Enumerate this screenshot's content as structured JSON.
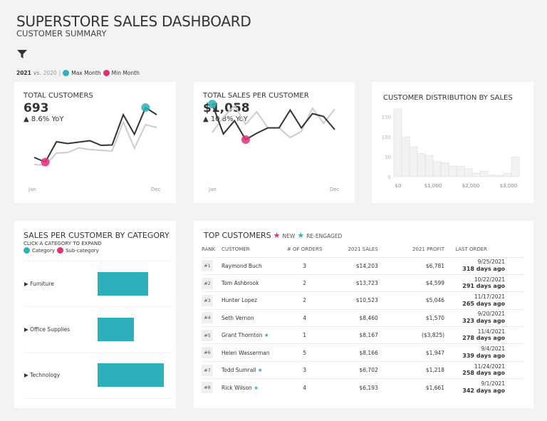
{
  "header": {
    "title": "SUPERSTORE SALES DASHBOARD",
    "subtitle": "CUSTOMER SUMMARY",
    "filter_icon": "funnel-icon",
    "legend": {
      "year": "2021",
      "vs": "vs.",
      "prev": "2020",
      "sep": "|",
      "max": "Max Month",
      "min": "Min Month"
    }
  },
  "colors": {
    "accent_max": "#2db0b9",
    "accent_min": "#e0307a",
    "line_current": "#333333",
    "line_prior": "#cccccc",
    "bar": "#2db0b9"
  },
  "kpis": [
    {
      "title": "TOTAL CUSTOMERS",
      "value": "693",
      "yoy": "▲ 8.6% YoY",
      "x_start": "Jan",
      "x_end": "Dec",
      "current": [
        38,
        25,
        82,
        77,
        81,
        85,
        72,
        73,
        158,
        103,
        178,
        158
      ],
      "prior": [
        18,
        16,
        50,
        52,
        65,
        60,
        58,
        56,
        138,
        64,
        130,
        122
      ],
      "max_index": 10,
      "min_index": 1
    },
    {
      "title": "TOTAL SALES PER CUSTOMER",
      "value": "$1,058",
      "yoy": "▲ 10.8% YoY",
      "x_start": "Jan",
      "x_end": "Dec",
      "current": [
        182,
        98,
        135,
        82,
        100,
        115,
        115,
        165,
        115,
        155,
        147,
        110
      ],
      "prior": [
        102,
        145,
        178,
        125,
        160,
        115,
        115,
        88,
        105,
        170,
        128,
        168
      ],
      "max_index": 0,
      "min_index": 3
    }
  ],
  "chart_data": {
    "type": "bar",
    "title": "CUSTOMER DISTRIBUTION BY SALES",
    "ylim": [
      0,
      170
    ],
    "yticks": [
      "0",
      "50",
      "100",
      "150"
    ],
    "xticks": [
      "$0",
      "$1,000",
      "$2,000",
      "$3,000"
    ],
    "values": [
      170,
      100,
      75,
      58,
      53,
      38,
      35,
      26,
      26,
      20,
      9,
      14,
      4,
      3,
      9,
      49
    ]
  },
  "category": {
    "title": "SALES PER CUSTOMER BY CATEGORY",
    "hint": "CLICK A CATEGORY TO EXPAND",
    "legend_category": "Category",
    "legend_sub": "Sub-category",
    "items": [
      {
        "label": "Furniture",
        "value": 0.76
      },
      {
        "label": "Office Supplies",
        "value": 0.55
      },
      {
        "label": "Technology",
        "value": 1.0
      }
    ]
  },
  "top": {
    "title": "TOP CUSTOMERS",
    "new": "NEW",
    "reengaged": "RE-ENGAGED",
    "columns": [
      "RANK",
      "CUSTOMER",
      "# OF ORDERS",
      "2021 SALES",
      "2021 PROFIT",
      "LAST ORDER"
    ],
    "rows": [
      {
        "rank": "#1",
        "name": "Raymond Buch",
        "star": "",
        "orders": "3",
        "sales": "$14,203",
        "profit": "$6,781",
        "date": "9/25/2021",
        "ago": "318 days ago"
      },
      {
        "rank": "#2",
        "name": "Tom Ashbrook",
        "star": "",
        "orders": "2",
        "sales": "$13,723",
        "profit": "$4,599",
        "date": "10/22/2021",
        "ago": "291 days ago"
      },
      {
        "rank": "#3",
        "name": "Hunter Lopez",
        "star": "",
        "orders": "2",
        "sales": "$10,523",
        "profit": "$5,046",
        "date": "11/17/2021",
        "ago": "265 days ago"
      },
      {
        "rank": "#4",
        "name": "Seth Vernon",
        "star": "",
        "orders": "4",
        "sales": "$8,460",
        "profit": "$1,570",
        "date": "9/20/2021",
        "ago": "323 days ago"
      },
      {
        "rank": "#5",
        "name": "Grant Thornton",
        "star": "★",
        "orders": "1",
        "sales": "$8,167",
        "profit": "($3,825)",
        "date": "11/4/2021",
        "ago": "278 days ago"
      },
      {
        "rank": "#6",
        "name": "Helen Wasserman",
        "star": "",
        "orders": "5",
        "sales": "$8,166",
        "profit": "$1,947",
        "date": "9/4/2021",
        "ago": "339 days ago"
      },
      {
        "rank": "#7",
        "name": "Todd Sumrall",
        "star": "★",
        "orders": "3",
        "sales": "$6,702",
        "profit": "$1,218",
        "date": "11/24/2021",
        "ago": "258 days ago"
      },
      {
        "rank": "#8",
        "name": "Rick Wilson",
        "star": "★",
        "orders": "4",
        "sales": "$6,193",
        "profit": "$1,661",
        "date": "9/1/2021",
        "ago": "342 days ago"
      }
    ]
  }
}
